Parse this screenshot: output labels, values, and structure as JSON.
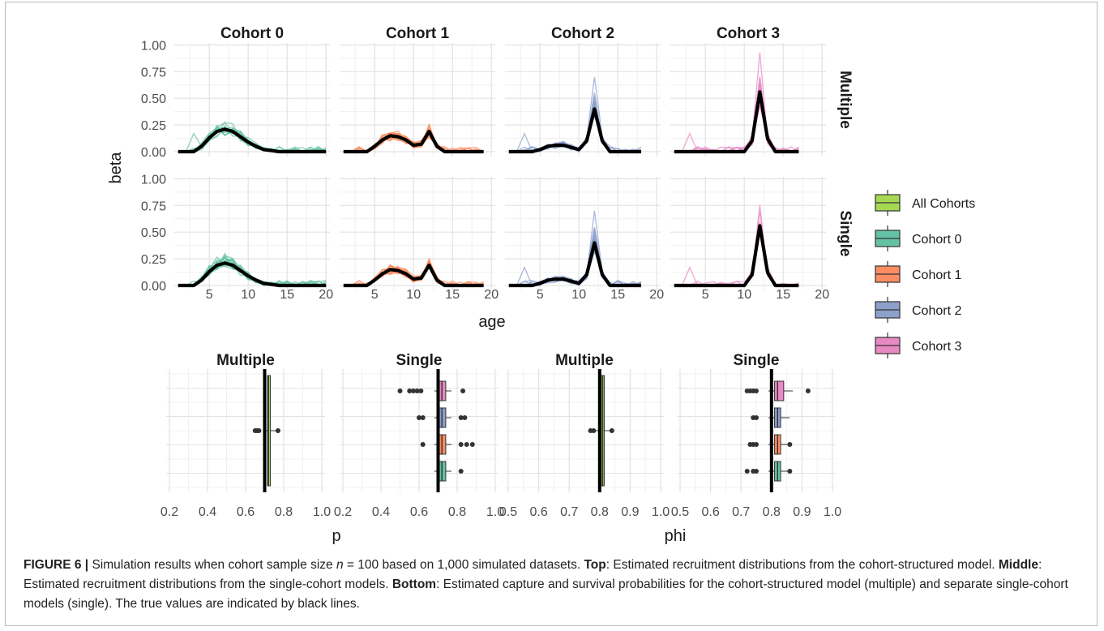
{
  "chart_data": [
    {
      "type": "line",
      "panel_group": "top",
      "columns": [
        "Cohort 0",
        "Cohort 1",
        "Cohort 2",
        "Cohort 3"
      ],
      "rows": [
        "Multiple",
        "Single"
      ],
      "xlabel": "age",
      "ylabel": "beta",
      "x_ticks": [
        5,
        10,
        15,
        20
      ],
      "y_ticks": [
        "0.00",
        "0.25",
        "0.50",
        "0.75",
        "1.00"
      ],
      "xlim": [
        0.5,
        20.5
      ],
      "ylim": [
        0,
        1
      ],
      "grid": true,
      "true_lines": {
        "Cohort 0": {
          "x": [
            1,
            2,
            3,
            4,
            5,
            6,
            7,
            8,
            9,
            10,
            11,
            12,
            13,
            14,
            15,
            16,
            17,
            18,
            19,
            20
          ],
          "y": [
            0,
            0,
            0,
            0.05,
            0.13,
            0.19,
            0.21,
            0.19,
            0.14,
            0.09,
            0.05,
            0.02,
            0.01,
            0,
            0,
            0,
            0,
            0,
            0,
            0
          ]
        },
        "Cohort 1": {
          "x": [
            1,
            2,
            3,
            4,
            5,
            6,
            7,
            8,
            9,
            10,
            11,
            12,
            13,
            14,
            15,
            16,
            17,
            18,
            19
          ],
          "y": [
            0,
            0,
            0,
            0,
            0.05,
            0.11,
            0.15,
            0.14,
            0.11,
            0.06,
            0.07,
            0.19,
            0.05,
            0,
            0,
            0,
            0,
            0,
            0
          ]
        },
        "Cohort 2": {
          "x": [
            1,
            2,
            3,
            4,
            5,
            6,
            7,
            8,
            9,
            10,
            11,
            12,
            13,
            14,
            15,
            16,
            17,
            18
          ],
          "y": [
            0,
            0,
            0,
            0,
            0.02,
            0.05,
            0.06,
            0.06,
            0.04,
            0.02,
            0.1,
            0.4,
            0.1,
            0,
            0,
            0,
            0,
            0
          ]
        },
        "Cohort 3": {
          "x": [
            1,
            2,
            3,
            4,
            5,
            6,
            7,
            8,
            9,
            10,
            11,
            12,
            13,
            14,
            15,
            16,
            17
          ],
          "y": [
            0,
            0,
            0,
            0,
            0,
            0,
            0,
            0,
            0,
            0,
            0.1,
            0.56,
            0.12,
            0,
            0,
            0,
            0
          ]
        }
      },
      "color_by_cohort": {
        "Cohort 0": "#66c2a5",
        "Cohort 1": "#fc8d62",
        "Cohort 2": "#8da0cb",
        "Cohort 3": "#e78ac3"
      },
      "true_line_color": "#000000"
    },
    {
      "type": "boxplot",
      "panel_group": "bottom",
      "panels": [
        {
          "title": "Multiple",
          "xlabel": "p",
          "x_ticks": [
            "0.2",
            "0.4",
            "0.6",
            "0.8",
            "1.0"
          ],
          "xlim": [
            0.2,
            1.0
          ],
          "true_value": 0.7,
          "boxes": [
            {
              "group": "All Cohorts",
              "median": 0.72,
              "q1": 0.715,
              "q3": 0.73,
              "outliers": [
                0.65,
                0.66,
                0.67,
                0.77
              ]
            }
          ]
        },
        {
          "title": "Single",
          "xlabel": "",
          "x_ticks": [
            "0.2",
            "0.4",
            "0.6",
            "0.8",
            "1.0"
          ],
          "xlim": [
            0.2,
            1.0
          ],
          "true_value": 0.7,
          "boxes": [
            {
              "group": "Cohort 3",
              "median": 0.72,
              "q1": 0.7,
              "q3": 0.74,
              "outliers": [
                0.5,
                0.55,
                0.57,
                0.59,
                0.61,
                0.83
              ]
            },
            {
              "group": "Cohort 2",
              "median": 0.72,
              "q1": 0.7,
              "q3": 0.74,
              "outliers": [
                0.6,
                0.62,
                0.82,
                0.84
              ]
            },
            {
              "group": "Cohort 1",
              "median": 0.72,
              "q1": 0.7,
              "q3": 0.74,
              "outliers": [
                0.62,
                0.82,
                0.85,
                0.88
              ]
            },
            {
              "group": "Cohort 0",
              "median": 0.72,
              "q1": 0.7,
              "q3": 0.74,
              "outliers": [
                0.82
              ]
            }
          ]
        },
        {
          "title": "Multiple",
          "xlabel": "",
          "x_ticks": [
            "0.5",
            "0.6",
            "0.7",
            "0.8",
            "0.9",
            "1.0"
          ],
          "xlim": [
            0.5,
            1.0
          ],
          "true_value": 0.8,
          "boxes": [
            {
              "group": "All Cohorts",
              "median": 0.81,
              "q1": 0.805,
              "q3": 0.815,
              "outliers": [
                0.77,
                0.78,
                0.84
              ]
            }
          ]
        },
        {
          "title": "Single",
          "xlabel": "phi",
          "x_ticks": [
            "0.5",
            "0.6",
            "0.7",
            "0.8",
            "0.9",
            "1.0"
          ],
          "xlim": [
            0.5,
            1.0
          ],
          "true_value": 0.8,
          "boxes": [
            {
              "group": "Cohort 3",
              "median": 0.82,
              "q1": 0.81,
              "q3": 0.84,
              "outliers": [
                0.72,
                0.73,
                0.74,
                0.75,
                0.92
              ]
            },
            {
              "group": "Cohort 2",
              "median": 0.82,
              "q1": 0.81,
              "q3": 0.83,
              "outliers": [
                0.74,
                0.75
              ]
            },
            {
              "group": "Cohort 1",
              "median": 0.82,
              "q1": 0.81,
              "q3": 0.83,
              "outliers": [
                0.73,
                0.74,
                0.75,
                0.86
              ]
            },
            {
              "group": "Cohort 0",
              "median": 0.82,
              "q1": 0.81,
              "q3": 0.83,
              "outliers": [
                0.72,
                0.74,
                0.75,
                0.86
              ]
            }
          ]
        }
      ]
    }
  ],
  "legend": {
    "placement": "right",
    "items": [
      {
        "label": "All Cohorts",
        "color": "#a6d854"
      },
      {
        "label": "Cohort 0",
        "color": "#66c2a5"
      },
      {
        "label": "Cohort 1",
        "color": "#fc8d62"
      },
      {
        "label": "Cohort 2",
        "color": "#8da0cb"
      },
      {
        "label": "Cohort 3",
        "color": "#e78ac3"
      }
    ]
  },
  "caption": {
    "label": "FIGURE 6 |",
    "t1": " Simulation results when cohort sample size ",
    "n_var": "n",
    "t2": " = 100 based on 1,000 simulated datasets. ",
    "top_label": "Top",
    "top_text": ": Estimated recruitment distributions from the cohort-structured model. ",
    "middle_label": "Middle",
    "middle_text": ": Estimated recruitment distributions from the single-cohort models. ",
    "bottom_label": "Bottom",
    "bottom_text": ": Estimated capture and survival probabilities for the cohort-structured model (multiple) and separate single-cohort models (single). The true values are indicated by black lines."
  }
}
